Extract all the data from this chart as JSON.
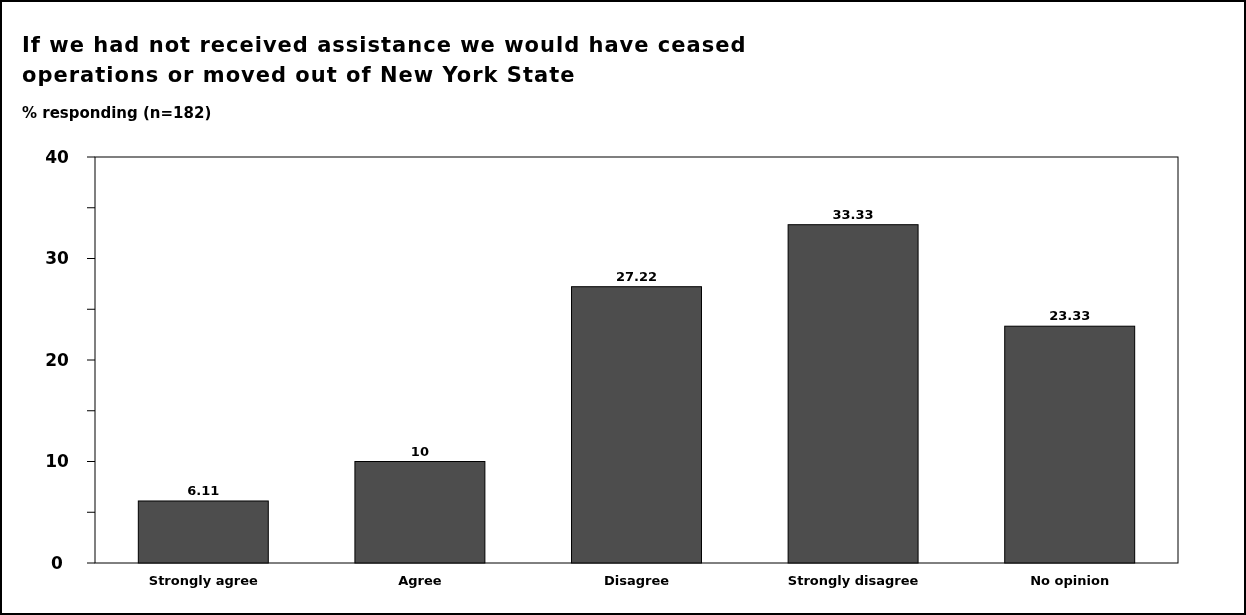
{
  "chart_data": {
    "type": "bar",
    "title": "If we had not received assistance we would have ceased operations or moved out of New York State",
    "ylabel": "% responding (n=182)",
    "categories": [
      "Strongly agree",
      "Agree",
      "Disagree",
      "Strongly disagree",
      "No opinion"
    ],
    "values": [
      6.11,
      10,
      27.22,
      33.33,
      23.33
    ],
    "color": "#4d4d4d",
    "ylim": [
      0,
      40
    ],
    "yticks": [
      0,
      {
        "value": 5,
        "label": null
      },
      10,
      {
        "value": 15,
        "label": null
      },
      20,
      {
        "value": 25,
        "label": null
      },
      30,
      {
        "value": 35,
        "label": null
      },
      40
    ],
    "data_labels": true
  }
}
